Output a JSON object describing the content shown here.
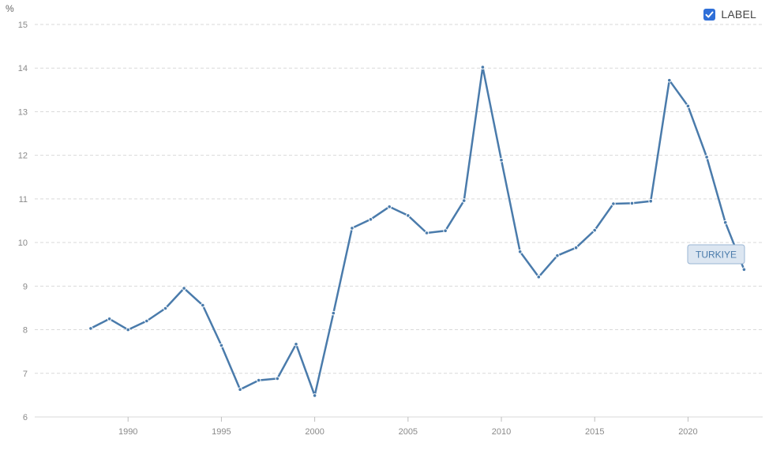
{
  "toggle": {
    "label": "LABEL",
    "checked": true
  },
  "colors": {
    "series": "#4a7bab",
    "tag_bg": "#dce6f1",
    "tag_border": "#9ab5d3",
    "tag_text": "#4a7bab",
    "checkbox": "#2f6fd8",
    "grid": "#d9d9d9"
  },
  "chart_data": {
    "type": "line",
    "ylabel": "%",
    "xlim": [
      1985,
      2024
    ],
    "ylim": [
      6,
      15
    ],
    "x_ticks": [
      1990,
      1995,
      2000,
      2005,
      2010,
      2015,
      2020
    ],
    "y_ticks": [
      6,
      7,
      8,
      9,
      10,
      11,
      12,
      13,
      14,
      15
    ],
    "grid": "horizontal-dashed",
    "series": [
      {
        "name": "TURKIYE",
        "x": [
          1988,
          1989,
          1990,
          1991,
          1992,
          1993,
          1994,
          1995,
          1996,
          1997,
          1998,
          1999,
          2000,
          2001,
          2002,
          2003,
          2004,
          2005,
          2006,
          2007,
          2008,
          2009,
          2010,
          2011,
          2012,
          2013,
          2014,
          2015,
          2016,
          2017,
          2018,
          2019,
          2020,
          2021,
          2022,
          2023
        ],
        "y": [
          8.03,
          8.25,
          8.0,
          8.2,
          8.49,
          8.95,
          8.56,
          7.64,
          6.63,
          6.84,
          6.88,
          7.67,
          6.49,
          8.38,
          10.33,
          10.53,
          10.82,
          10.62,
          10.22,
          10.27,
          10.96,
          14.02,
          11.89,
          9.79,
          9.21,
          9.7,
          9.88,
          10.28,
          10.89,
          10.9,
          10.95,
          13.72,
          13.13,
          11.96,
          10.46,
          9.38
        ]
      }
    ]
  }
}
